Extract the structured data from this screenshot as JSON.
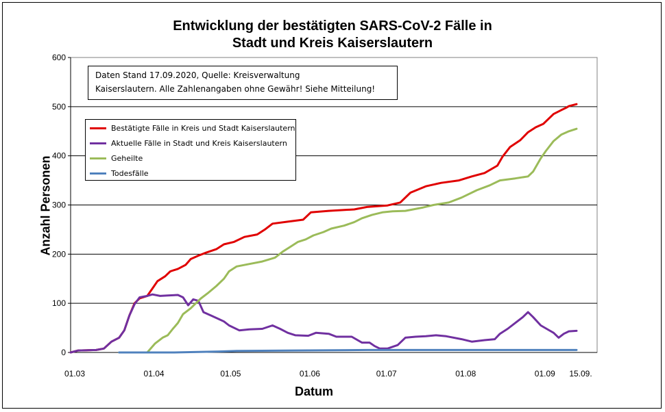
{
  "chart_data": {
    "type": "line",
    "title_lines": [
      "Entwicklung der bestätigten SARS-CoV-2 Fälle in",
      "Stadt und Kreis Kaiserslautern"
    ],
    "xlabel": "Datum",
    "ylabel": "Anzahl Personen",
    "ylim": [
      0,
      600
    ],
    "yticks": [
      0,
      100,
      200,
      300,
      400,
      500,
      600
    ],
    "xlim": [
      "2020-03-01",
      "2020-09-15"
    ],
    "xtick_labels": [
      {
        "date": "2020-03-01",
        "label": "01.03"
      },
      {
        "date": "2020-04-01",
        "label": "01.04"
      },
      {
        "date": "2020-05-01",
        "label": "01.05"
      },
      {
        "date": "2020-06-01",
        "label": "01.06"
      },
      {
        "date": "2020-07-01",
        "label": "01.07"
      },
      {
        "date": "2020-08-01",
        "label": "01.08"
      },
      {
        "date": "2020-09-01",
        "label": "01.09"
      },
      {
        "date": "2020-09-15",
        "label": "15.09."
      }
    ],
    "grid": "horizontal",
    "annotation_lines": [
      "Daten Stand 17.09.2020, Quelle: Kreisverwaltung",
      "Kaiserslautern. Alle Zahlenangaben ohne Gewähr! Siehe Mitteilung!"
    ],
    "legend_position": "top-left",
    "series": [
      {
        "name": "Bestätigte Fälle in Kreis und Stadt Kaiserslautern",
        "color": "#e00000",
        "points": [
          [
            "2020-03-01",
            0
          ],
          [
            "2020-03-04",
            4
          ],
          [
            "2020-03-11",
            5
          ],
          [
            "2020-03-14",
            8
          ],
          [
            "2020-03-17",
            22
          ],
          [
            "2020-03-20",
            30
          ],
          [
            "2020-03-22",
            45
          ],
          [
            "2020-03-24",
            75
          ],
          [
            "2020-03-26",
            100
          ],
          [
            "2020-03-28",
            110
          ],
          [
            "2020-03-31",
            115
          ],
          [
            "2020-04-02",
            130
          ],
          [
            "2020-04-04",
            145
          ],
          [
            "2020-04-07",
            155
          ],
          [
            "2020-04-09",
            165
          ],
          [
            "2020-04-12",
            170
          ],
          [
            "2020-04-15",
            178
          ],
          [
            "2020-04-17",
            190
          ],
          [
            "2020-04-20",
            197
          ],
          [
            "2020-04-23",
            203
          ],
          [
            "2020-04-27",
            210
          ],
          [
            "2020-04-30",
            220
          ],
          [
            "2020-05-04",
            225
          ],
          [
            "2020-05-08",
            235
          ],
          [
            "2020-05-13",
            240
          ],
          [
            "2020-05-16",
            250
          ],
          [
            "2020-05-19",
            262
          ],
          [
            "2020-05-25",
            266
          ],
          [
            "2020-05-31",
            270
          ],
          [
            "2020-06-03",
            285
          ],
          [
            "2020-06-10",
            288
          ],
          [
            "2020-06-20",
            291
          ],
          [
            "2020-06-25",
            296
          ],
          [
            "2020-07-03",
            299
          ],
          [
            "2020-07-08",
            305
          ],
          [
            "2020-07-12",
            325
          ],
          [
            "2020-07-18",
            338
          ],
          [
            "2020-07-24",
            345
          ],
          [
            "2020-07-31",
            350
          ],
          [
            "2020-08-05",
            358
          ],
          [
            "2020-08-10",
            365
          ],
          [
            "2020-08-15",
            380
          ],
          [
            "2020-08-17",
            398
          ],
          [
            "2020-08-20",
            418
          ],
          [
            "2020-08-24",
            432
          ],
          [
            "2020-08-27",
            448
          ],
          [
            "2020-08-30",
            458
          ],
          [
            "2020-09-02",
            465
          ],
          [
            "2020-09-06",
            485
          ],
          [
            "2020-09-09",
            493
          ],
          [
            "2020-09-11",
            498
          ],
          [
            "2020-09-12",
            501
          ],
          [
            "2020-09-15",
            505
          ]
        ]
      },
      {
        "name": "Aktuelle Fälle in Stadt und Kreis Kaiserslautern",
        "color": "#7030a0",
        "points": [
          [
            "2020-03-01",
            0
          ],
          [
            "2020-03-04",
            4
          ],
          [
            "2020-03-11",
            5
          ],
          [
            "2020-03-14",
            8
          ],
          [
            "2020-03-17",
            22
          ],
          [
            "2020-03-20",
            30
          ],
          [
            "2020-03-22",
            45
          ],
          [
            "2020-03-24",
            75
          ],
          [
            "2020-03-26",
            98
          ],
          [
            "2020-03-28",
            112
          ],
          [
            "2020-03-31",
            115
          ],
          [
            "2020-04-02",
            118
          ],
          [
            "2020-04-05",
            115
          ],
          [
            "2020-04-08",
            116
          ],
          [
            "2020-04-12",
            117
          ],
          [
            "2020-04-14",
            112
          ],
          [
            "2020-04-16",
            96
          ],
          [
            "2020-04-18",
            108
          ],
          [
            "2020-04-20",
            105
          ],
          [
            "2020-04-22",
            82
          ],
          [
            "2020-04-25",
            75
          ],
          [
            "2020-04-28",
            68
          ],
          [
            "2020-04-30",
            63
          ],
          [
            "2020-05-02",
            55
          ],
          [
            "2020-05-06",
            45
          ],
          [
            "2020-05-10",
            47
          ],
          [
            "2020-05-15",
            48
          ],
          [
            "2020-05-19",
            55
          ],
          [
            "2020-05-22",
            48
          ],
          [
            "2020-05-25",
            40
          ],
          [
            "2020-05-28",
            35
          ],
          [
            "2020-06-02",
            34
          ],
          [
            "2020-06-05",
            40
          ],
          [
            "2020-06-10",
            38
          ],
          [
            "2020-06-13",
            32
          ],
          [
            "2020-06-19",
            32
          ],
          [
            "2020-06-23",
            20
          ],
          [
            "2020-06-26",
            20
          ],
          [
            "2020-06-28",
            13
          ],
          [
            "2020-06-30",
            8
          ],
          [
            "2020-07-03",
            8
          ],
          [
            "2020-07-07",
            15
          ],
          [
            "2020-07-10",
            30
          ],
          [
            "2020-07-14",
            32
          ],
          [
            "2020-07-18",
            33
          ],
          [
            "2020-07-22",
            35
          ],
          [
            "2020-07-26",
            33
          ],
          [
            "2020-08-01",
            27
          ],
          [
            "2020-08-05",
            22
          ],
          [
            "2020-08-10",
            25
          ],
          [
            "2020-08-14",
            27
          ],
          [
            "2020-08-16",
            38
          ],
          [
            "2020-08-19",
            48
          ],
          [
            "2020-08-22",
            60
          ],
          [
            "2020-08-25",
            72
          ],
          [
            "2020-08-27",
            82
          ],
          [
            "2020-08-29",
            72
          ],
          [
            "2020-09-01",
            55
          ],
          [
            "2020-09-04",
            46
          ],
          [
            "2020-09-06",
            40
          ],
          [
            "2020-09-08",
            30
          ],
          [
            "2020-09-10",
            38
          ],
          [
            "2020-09-12",
            43
          ],
          [
            "2020-09-15",
            44
          ]
        ]
      },
      {
        "name": "Geheilte",
        "color": "#9bbb59",
        "points": [
          [
            "2020-03-20",
            0
          ],
          [
            "2020-03-31",
            0
          ],
          [
            "2020-04-03",
            18
          ],
          [
            "2020-04-06",
            30
          ],
          [
            "2020-04-08",
            35
          ],
          [
            "2020-04-10",
            48
          ],
          [
            "2020-04-12",
            60
          ],
          [
            "2020-04-14",
            78
          ],
          [
            "2020-04-17",
            90
          ],
          [
            "2020-04-19",
            100
          ],
          [
            "2020-04-21",
            110
          ],
          [
            "2020-04-24",
            122
          ],
          [
            "2020-04-27",
            135
          ],
          [
            "2020-04-30",
            150
          ],
          [
            "2020-05-02",
            165
          ],
          [
            "2020-05-05",
            175
          ],
          [
            "2020-05-10",
            180
          ],
          [
            "2020-05-15",
            185
          ],
          [
            "2020-05-20",
            193
          ],
          [
            "2020-05-23",
            205
          ],
          [
            "2020-05-26",
            215
          ],
          [
            "2020-05-29",
            225
          ],
          [
            "2020-06-01",
            230
          ],
          [
            "2020-06-04",
            238
          ],
          [
            "2020-06-08",
            245
          ],
          [
            "2020-06-11",
            252
          ],
          [
            "2020-06-16",
            258
          ],
          [
            "2020-06-20",
            265
          ],
          [
            "2020-06-23",
            273
          ],
          [
            "2020-06-27",
            280
          ],
          [
            "2020-07-01",
            285
          ],
          [
            "2020-07-05",
            287
          ],
          [
            "2020-07-10",
            288
          ],
          [
            "2020-07-17",
            295
          ],
          [
            "2020-07-21",
            300
          ],
          [
            "2020-07-27",
            305
          ],
          [
            "2020-08-01",
            315
          ],
          [
            "2020-08-07",
            330
          ],
          [
            "2020-08-12",
            340
          ],
          [
            "2020-08-16",
            350
          ],
          [
            "2020-08-22",
            354
          ],
          [
            "2020-08-27",
            358
          ],
          [
            "2020-08-29",
            368
          ],
          [
            "2020-09-01",
            395
          ],
          [
            "2020-09-03",
            410
          ],
          [
            "2020-09-06",
            430
          ],
          [
            "2020-09-09",
            443
          ],
          [
            "2020-09-12",
            450
          ],
          [
            "2020-09-15",
            455
          ]
        ]
      },
      {
        "name": "Todesfälle",
        "color": "#4f81bd",
        "points": [
          [
            "2020-03-20",
            0
          ],
          [
            "2020-04-10",
            0
          ],
          [
            "2020-04-28",
            2
          ],
          [
            "2020-05-05",
            3
          ],
          [
            "2020-05-28",
            4
          ],
          [
            "2020-06-25",
            5
          ],
          [
            "2020-09-15",
            5
          ]
        ]
      }
    ]
  }
}
